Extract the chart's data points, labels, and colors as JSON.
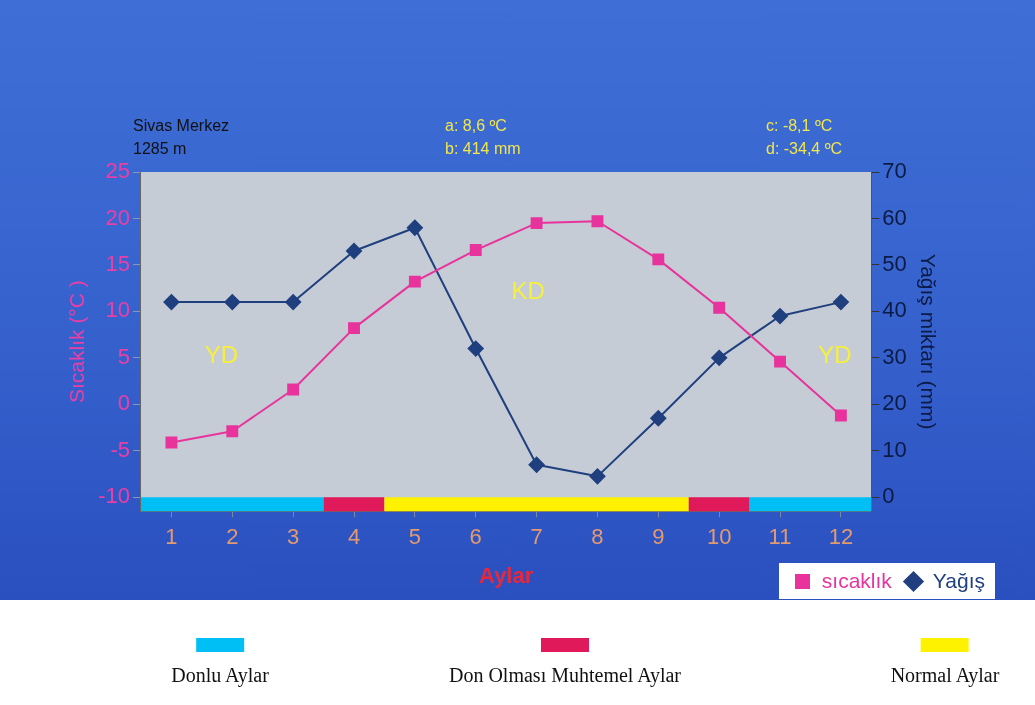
{
  "chart_data": {
    "type": "line",
    "title": "Sivas Merkez",
    "subtitle": "1285 m",
    "xlabel": "Aylar",
    "ylabel": "Sıcaklık (°C )",
    "y2label": "Yağış miktarı (mm)",
    "x": [
      1,
      2,
      3,
      4,
      5,
      6,
      7,
      8,
      9,
      10,
      11,
      12
    ],
    "xlim": [
      0.5,
      12.5
    ],
    "xticks": [
      1,
      2,
      3,
      4,
      5,
      6,
      7,
      8,
      9,
      10,
      11,
      12
    ],
    "series": [
      {
        "name": "sıcaklık",
        "color": "#e8339c",
        "marker": "square",
        "values": [
          -4.1,
          -2.9,
          1.6,
          8.2,
          13.2,
          16.6,
          19.5,
          19.7,
          15.6,
          10.4,
          4.6,
          -1.2
        ]
      },
      {
        "name": "Yağış",
        "color": "#1f3f7e",
        "marker": "diamond",
        "axis": "y2",
        "values": [
          42,
          42,
          42,
          53,
          58,
          32,
          7,
          4.5,
          17,
          30,
          39,
          42
        ]
      }
    ],
    "ylim": [
      -11.5,
      25
    ],
    "yticks": [
      -10,
      -5,
      0,
      5,
      10,
      15,
      20,
      25
    ],
    "y2lim": [
      -3,
      70
    ],
    "y2ticks": [
      0,
      10,
      20,
      30,
      40,
      50,
      60,
      70
    ],
    "grid": false,
    "legend": "bottom right",
    "line_style": "solid",
    "bands": [
      {
        "axis": "x",
        "from": 0.5,
        "to": 3.5,
        "label": "Donlu Aylar",
        "color": "#00bff5"
      },
      {
        "axis": "x",
        "from": 3.5,
        "to": 4.5,
        "label": "Don Olması Muhtemel Aylar",
        "color": "#e0195a"
      },
      {
        "axis": "x",
        "from": 4.5,
        "to": 9.5,
        "label": "Normal  Aylar",
        "color": "#fff200"
      },
      {
        "axis": "x",
        "from": 9.5,
        "to": 10.5,
        "color": "#e0195a"
      },
      {
        "axis": "x",
        "from": 10.5,
        "to": 12.5,
        "color": "#00bff5"
      }
    ],
    "annotations": [
      "a: 8,6 ºC",
      "b: 414 mm",
      "c: -8,1 ºC",
      "d: -34,4 ºC",
      "YD",
      "KD",
      "YD"
    ]
  }
}
